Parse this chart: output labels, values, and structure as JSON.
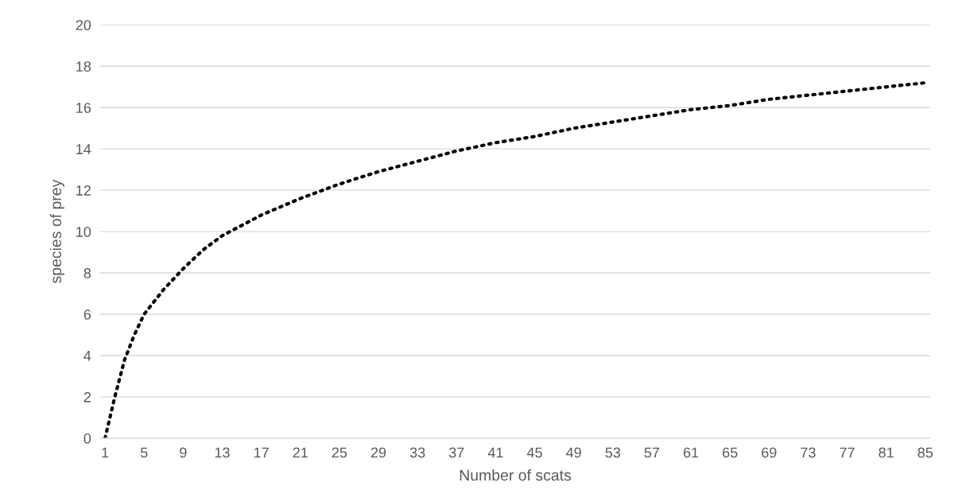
{
  "chart_data": {
    "type": "line",
    "xlabel": "Number of scats",
    "ylabel": "species of prey",
    "x": [
      1,
      2,
      3,
      4,
      5,
      7,
      9,
      11,
      13,
      15,
      17,
      21,
      25,
      29,
      33,
      37,
      41,
      45,
      49,
      53,
      57,
      61,
      65,
      69,
      73,
      77,
      81,
      85
    ],
    "series": [
      {
        "color": "#000000",
        "values": [
          0,
          2.0,
          3.8,
          5.0,
          6.0,
          7.2,
          8.2,
          9.1,
          9.8,
          10.3,
          10.8,
          11.6,
          12.3,
          12.9,
          13.4,
          13.9,
          14.3,
          14.6,
          15.0,
          15.3,
          15.6,
          15.9,
          16.1,
          16.4,
          16.6,
          16.8,
          17.0,
          17.2
        ]
      }
    ],
    "xlim": [
      0.5,
      85.5
    ],
    "xticks": [
      1,
      5,
      9,
      13,
      17,
      21,
      25,
      29,
      33,
      37,
      41,
      45,
      49,
      53,
      57,
      61,
      65,
      69,
      73,
      77,
      81,
      85
    ],
    "ylim": [
      0,
      20
    ],
    "yticks": [
      0,
      2,
      4,
      6,
      8,
      10,
      12,
      14,
      16,
      18,
      20
    ],
    "grid": "y",
    "line_style": "dotted",
    "marker": "none"
  }
}
